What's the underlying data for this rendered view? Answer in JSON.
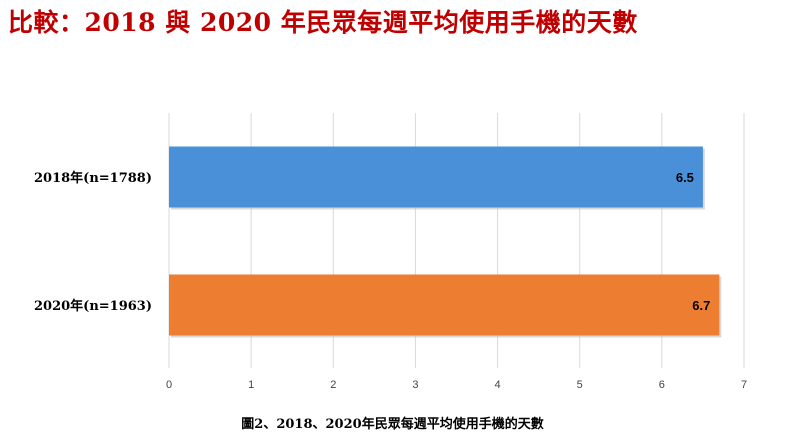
{
  "chart_data": {
    "type": "bar",
    "orientation": "horizontal",
    "title": "比較：2018 與 2020 年民眾每週平均使用手機的天數",
    "categories": [
      "2018年(n=1788)",
      "2020年(n=1963)"
    ],
    "values": [
      6.5,
      6.7
    ],
    "data_labels": [
      "6.5",
      "6.7"
    ],
    "bar_colors": [
      "#4a90d9",
      "#ed7d31"
    ],
    "xlim": [
      0,
      7
    ],
    "xticks": [
      "0",
      "1",
      "2",
      "3",
      "4",
      "5",
      "6",
      "7"
    ],
    "grid": true,
    "legend": "none",
    "caption": "圖2、2018、2020年民眾每週平均使用手機的天數"
  },
  "colors": {
    "title": "#c00000",
    "gridline": "#d9d9d9"
  }
}
